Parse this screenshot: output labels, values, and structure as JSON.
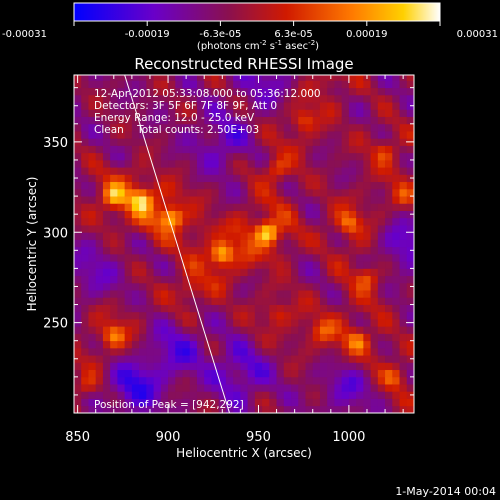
{
  "colorbar": {
    "tick_labels": [
      "-0.00031",
      "-0.00019",
      "-6.3e-05",
      "6.3e-05",
      "0.00019",
      "0.00031"
    ],
    "unit_label": "(photons cm",
    "unit_exp1": "-2",
    "unit_s": " s",
    "unit_exp2": "-1",
    "unit_asec": " asec",
    "unit_exp3": "-2",
    "unit_close": ")"
  },
  "chart_data": {
    "type": "heatmap",
    "title": "Reconstructed RHESSI Image",
    "xlabel": "Heliocentric X (arcsec)",
    "ylabel": "Heliocentric Y (arcsec)",
    "xlim": [
      848,
      1036
    ],
    "ylim": [
      200,
      387
    ],
    "x_ticks": [
      850,
      900,
      950,
      1000
    ],
    "y_ticks": [
      250,
      300,
      350
    ],
    "zlim": [
      -0.00031,
      0.00031
    ],
    "colorscale": "blue-purple-red-yellow-white",
    "annotations": [
      "12-Apr-2012 05:33:08.000 to 05:36:12.000",
      "Detectors: 3F 5F 6F 7F 8F 9F, Att 0",
      "Energy Range: 12.0 - 25.0 keV",
      "Clean    Total counts: 2.50E+03",
      "Position of Peak = [942,292]"
    ],
    "peak": [
      942,
      292
    ],
    "limb_line": [
      [
        876,
        387
      ],
      [
        934,
        200
      ]
    ],
    "hot_spots": [
      {
        "x": 955,
        "y": 300,
        "amp": 1.0
      },
      {
        "x": 930,
        "y": 288,
        "amp": 0.9
      },
      {
        "x": 902,
        "y": 308,
        "amp": 0.85
      },
      {
        "x": 885,
        "y": 318,
        "amp": 0.75
      },
      {
        "x": 870,
        "y": 320,
        "amp": 0.7
      },
      {
        "x": 1000,
        "y": 305,
        "amp": 0.6
      },
      {
        "x": 1010,
        "y": 275,
        "amp": 0.55
      },
      {
        "x": 1005,
        "y": 240,
        "amp": 0.6
      },
      {
        "x": 985,
        "y": 245,
        "amp": 0.45
      },
      {
        "x": 870,
        "y": 243,
        "amp": 0.65
      },
      {
        "x": 1025,
        "y": 220,
        "amp": 0.5
      },
      {
        "x": 975,
        "y": 362,
        "amp": 0.5
      },
      {
        "x": 1020,
        "y": 345,
        "amp": 0.45
      },
      {
        "x": 960,
        "y": 335,
        "amp": 0.5
      },
      {
        "x": 912,
        "y": 268,
        "amp": 0.45
      },
      {
        "x": 960,
        "y": 255,
        "amp": 0.4
      },
      {
        "x": 990,
        "y": 385,
        "amp": 0.35
      },
      {
        "x": 855,
        "y": 215,
        "amp": 0.4
      },
      {
        "x": 1030,
        "y": 320,
        "amp": 0.4
      }
    ],
    "cold_spots": [
      {
        "x": 880,
        "y": 215,
        "amp": 0.8
      },
      {
        "x": 940,
        "y": 222,
        "amp": 0.6
      },
      {
        "x": 1030,
        "y": 292,
        "amp": 0.6
      },
      {
        "x": 930,
        "y": 350,
        "amp": 0.5
      },
      {
        "x": 1000,
        "y": 215,
        "amp": 0.5
      },
      {
        "x": 905,
        "y": 235,
        "amp": 0.55
      },
      {
        "x": 955,
        "y": 385,
        "amp": 0.45
      },
      {
        "x": 858,
        "y": 278,
        "amp": 0.4
      }
    ]
  },
  "footer": {
    "date": "1-May-2014 00:04"
  }
}
